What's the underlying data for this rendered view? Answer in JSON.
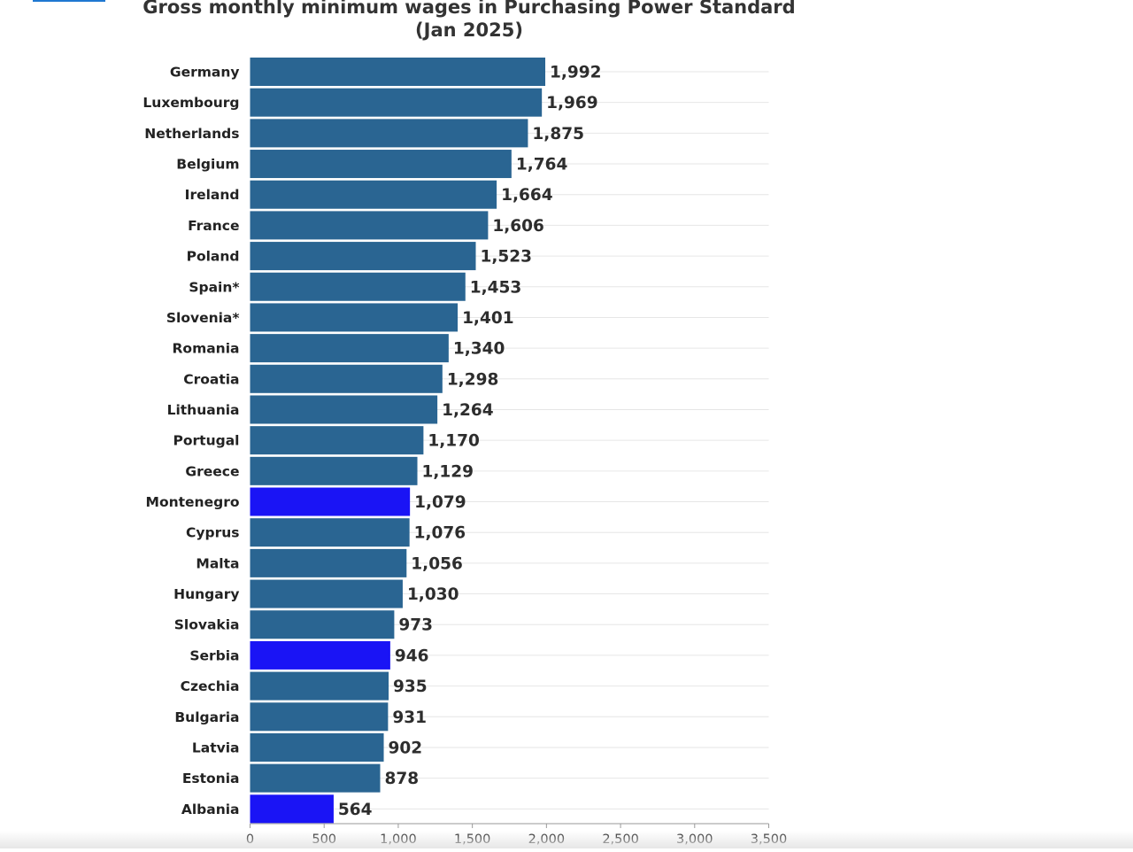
{
  "colors": {
    "default_bar": "#2a6592",
    "highlight_bar": "#1a14f5",
    "top_accent": "#1f78d1",
    "grid": "#e6e6e6",
    "axis": "#9a9a9a"
  },
  "chart_data": {
    "type": "bar",
    "orientation": "horizontal",
    "title": "Gross monthly minimum wages in Purchasing Power Standard",
    "subtitle": "(Jan 2025)",
    "xlabel": "",
    "ylabel": "",
    "xlim": [
      0,
      3500
    ],
    "xticks": [
      0,
      500,
      1000,
      1500,
      2000,
      2500,
      3000,
      3500
    ],
    "xtick_labels": [
      "0",
      "500",
      "1,000",
      "1,500",
      "2,000",
      "2,500",
      "3,000",
      "3,500"
    ],
    "grid": true,
    "categories": [
      "Germany",
      "Luxembourg",
      "Netherlands",
      "Belgium",
      "Ireland",
      "France",
      "Poland",
      "Spain*",
      "Slovenia*",
      "Romania",
      "Croatia",
      "Lithuania",
      "Portugal",
      "Greece",
      "Montenegro",
      "Cyprus",
      "Malta",
      "Hungary",
      "Slovakia",
      "Serbia",
      "Czechia",
      "Bulgaria",
      "Latvia",
      "Estonia",
      "Albania"
    ],
    "values": [
      1992,
      1969,
      1875,
      1764,
      1664,
      1606,
      1523,
      1453,
      1401,
      1340,
      1298,
      1264,
      1170,
      1129,
      1079,
      1076,
      1056,
      1030,
      973,
      946,
      935,
      931,
      902,
      878,
      564
    ],
    "value_labels": [
      "1,992",
      "1,969",
      "1,875",
      "1,764",
      "1,664",
      "1,606",
      "1,523",
      "1,453",
      "1,401",
      "1,340",
      "1,298",
      "1,264",
      "1,170",
      "1,129",
      "1,079",
      "1,076",
      "1,056",
      "1,030",
      "973",
      "946",
      "935",
      "931",
      "902",
      "878",
      "564"
    ],
    "highlighted": [
      "Montenegro",
      "Serbia",
      "Albania"
    ]
  }
}
